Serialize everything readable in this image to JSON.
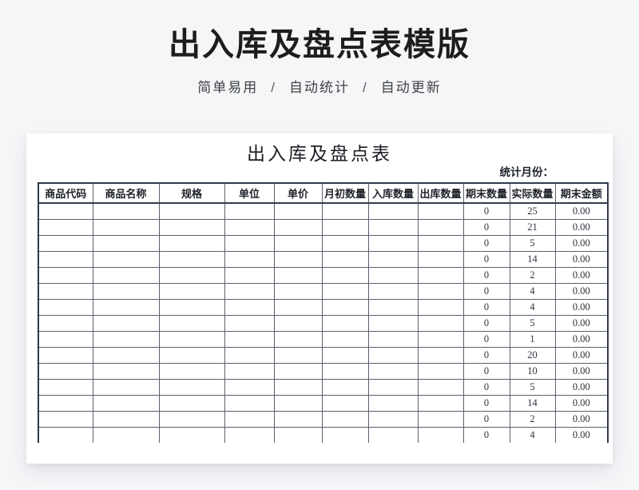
{
  "page": {
    "title": "出入库及盘点表模版",
    "subtitle_parts": [
      "简单易用",
      "自动统计",
      "自动更新"
    ],
    "subtitle_separator": "/"
  },
  "sheet": {
    "title": "出入库及盘点表",
    "stats_month_label": "统计月份：",
    "columns": [
      "商品代码",
      "商品名称",
      "规格",
      "单位",
      "单价",
      "月初数量",
      "入库数量",
      "出库数量",
      "期末数量",
      "实际数量",
      "期末金额"
    ],
    "rows": [
      [
        "",
        "",
        "",
        "",
        "",
        "",
        "",
        "",
        "0",
        "25",
        "0.00"
      ],
      [
        "",
        "",
        "",
        "",
        "",
        "",
        "",
        "",
        "0",
        "21",
        "0.00"
      ],
      [
        "",
        "",
        "",
        "",
        "",
        "",
        "",
        "",
        "0",
        "5",
        "0.00"
      ],
      [
        "",
        "",
        "",
        "",
        "",
        "",
        "",
        "",
        "0",
        "14",
        "0.00"
      ],
      [
        "",
        "",
        "",
        "",
        "",
        "",
        "",
        "",
        "0",
        "2",
        "0.00"
      ],
      [
        "",
        "",
        "",
        "",
        "",
        "",
        "",
        "",
        "0",
        "4",
        "0.00"
      ],
      [
        "",
        "",
        "",
        "",
        "",
        "",
        "",
        "",
        "0",
        "4",
        "0.00"
      ],
      [
        "",
        "",
        "",
        "",
        "",
        "",
        "",
        "",
        "0",
        "5",
        "0.00"
      ],
      [
        "",
        "",
        "",
        "",
        "",
        "",
        "",
        "",
        "0",
        "1",
        "0.00"
      ],
      [
        "",
        "",
        "",
        "",
        "",
        "",
        "",
        "",
        "0",
        "20",
        "0.00"
      ],
      [
        "",
        "",
        "",
        "",
        "",
        "",
        "",
        "",
        "0",
        "10",
        "0.00"
      ],
      [
        "",
        "",
        "",
        "",
        "",
        "",
        "",
        "",
        "0",
        "5",
        "0.00"
      ],
      [
        "",
        "",
        "",
        "",
        "",
        "",
        "",
        "",
        "0",
        "14",
        "0.00"
      ],
      [
        "",
        "",
        "",
        "",
        "",
        "",
        "",
        "",
        "0",
        "2",
        "0.00"
      ],
      [
        "",
        "",
        "",
        "",
        "",
        "",
        "",
        "",
        "0",
        "4",
        "0.00"
      ]
    ],
    "colors": {
      "page_background": "#f5f6f8",
      "card_background": "#ffffff",
      "table_outer_border": "#2f3a4a",
      "table_inner_border": "#5a6170",
      "title_text": "#1d1d1f",
      "cell_text": "#2e333c"
    }
  }
}
